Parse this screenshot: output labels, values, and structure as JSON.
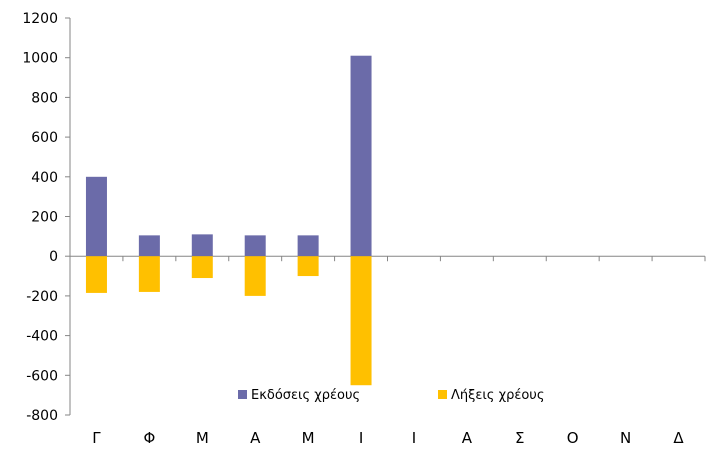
{
  "chart_data": {
    "type": "bar",
    "stacked": true,
    "categories": [
      "Γ",
      "Φ",
      "Μ",
      "Α",
      "Μ",
      "Ι",
      "Ι",
      "Α",
      "Σ",
      "Ο",
      "Ν",
      "Δ"
    ],
    "series": [
      {
        "name": "Εκδόσεις χρέους",
        "color": "#6b6ba9",
        "values": [
          400,
          105,
          110,
          105,
          105,
          1010,
          null,
          null,
          null,
          null,
          null,
          null
        ]
      },
      {
        "name": "Λήξεις χρέους",
        "color": "#ffc000",
        "values": [
          -185,
          -180,
          -110,
          -200,
          -100,
          -650,
          null,
          null,
          null,
          null,
          null,
          null
        ]
      }
    ],
    "ylim": [
      -800,
      1200
    ],
    "yticks": [
      -800,
      -600,
      -400,
      -200,
      0,
      200,
      400,
      600,
      800,
      1000,
      1200
    ],
    "title": "",
    "xlabel": "",
    "ylabel": "",
    "grid": false,
    "legend_position": "bottom"
  }
}
